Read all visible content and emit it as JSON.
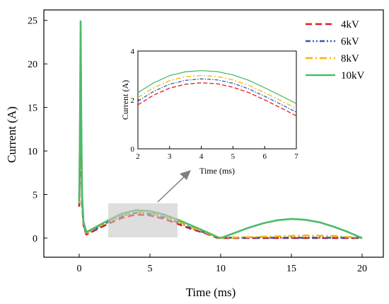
{
  "colors": {
    "s4": "#e41a1c",
    "s6": "#2b5fb3",
    "s8": "#f2b705",
    "s10": "#4dbb6a"
  },
  "chart_data": [
    {
      "type": "line",
      "xlabel": "Time (ms)",
      "ylabel": "Current (A)",
      "xlim": [
        -2.5,
        21.5
      ],
      "ylim": [
        -2.2,
        26.2
      ],
      "xticks": [
        0,
        5,
        10,
        15,
        20
      ],
      "yticks": [
        0,
        5,
        10,
        15,
        20,
        25
      ],
      "legend": "top-right",
      "series": [
        {
          "name": "4kV",
          "key": "s4",
          "dash": "9,5",
          "x": [
            0,
            0.05,
            0.1,
            0.15,
            0.2,
            0.3,
            0.5,
            1,
            2,
            3,
            4,
            5,
            6,
            7,
            8,
            9,
            9.8,
            10,
            12,
            14,
            16,
            18,
            20
          ],
          "y": [
            3.6,
            9,
            21,
            10,
            4,
            1.5,
            0.4,
            0.8,
            1.6,
            2.3,
            2.7,
            2.6,
            2.2,
            1.6,
            1.0,
            0.5,
            0.0,
            0.0,
            0.0,
            0.0,
            0.0,
            0.0,
            0.0
          ]
        },
        {
          "name": "6kV",
          "key": "s6",
          "dash": "7,3,2,3,2,3",
          "x": [
            0,
            0.05,
            0.1,
            0.15,
            0.2,
            0.3,
            0.5,
            1,
            2,
            3,
            4,
            5,
            6,
            7,
            8,
            9,
            9.8,
            10,
            12,
            14,
            16,
            18,
            20
          ],
          "y": [
            3.8,
            10,
            22,
            11,
            4.3,
            1.6,
            0.5,
            0.9,
            1.8,
            2.5,
            2.9,
            2.8,
            2.4,
            1.8,
            1.1,
            0.55,
            0.05,
            0.05,
            0.05,
            0.05,
            0.05,
            0.05,
            0.05
          ]
        },
        {
          "name": "8kV",
          "key": "s8",
          "dash": "10,4,2,4",
          "x": [
            0,
            0.05,
            0.1,
            0.15,
            0.2,
            0.3,
            0.5,
            1,
            2,
            3,
            4,
            5,
            6,
            7,
            8,
            9,
            9.8,
            10,
            12,
            14,
            15,
            16,
            18,
            20
          ],
          "y": [
            4.0,
            11,
            23.5,
            12,
            4.6,
            1.7,
            0.6,
            1.0,
            1.9,
            2.6,
            3.0,
            2.9,
            2.5,
            1.9,
            1.2,
            0.6,
            0.05,
            0.05,
            0.1,
            0.2,
            0.25,
            0.3,
            0.25,
            0.0
          ]
        },
        {
          "name": "10kV",
          "key": "s10",
          "dash": "",
          "x": [
            0,
            0.05,
            0.1,
            0.15,
            0.2,
            0.3,
            0.5,
            1,
            2,
            3,
            4,
            5,
            6,
            7,
            8,
            9,
            9.8,
            10,
            11,
            12,
            13,
            14,
            15,
            16,
            17,
            18,
            19,
            20
          ],
          "y": [
            4.2,
            12,
            24.9,
            13,
            5.0,
            1.9,
            0.7,
            1.1,
            2.0,
            2.8,
            3.2,
            3.1,
            2.7,
            2.1,
            1.4,
            0.7,
            0.1,
            0.0,
            0.6,
            1.2,
            1.7,
            2.05,
            2.2,
            2.1,
            1.8,
            1.3,
            0.7,
            0.0
          ]
        }
      ]
    },
    {
      "type": "line",
      "xlabel": "Time (ms)",
      "ylabel": "Current (A)",
      "xlim": [
        2,
        7
      ],
      "ylim": [
        0,
        4
      ],
      "xticks": [
        2,
        3,
        4,
        5,
        6,
        7
      ],
      "yticks": [
        0,
        2,
        4
      ],
      "series": [
        {
          "name": "4kV",
          "key": "s4",
          "dash": "6,3",
          "x": [
            2,
            2.5,
            3,
            3.5,
            4,
            4.5,
            5,
            5.5,
            6,
            6.5,
            7
          ],
          "y": [
            1.8,
            2.2,
            2.48,
            2.64,
            2.7,
            2.66,
            2.52,
            2.3,
            2.0,
            1.68,
            1.35
          ]
        },
        {
          "name": "6kV",
          "key": "s6",
          "dash": "5,2,1.5,2",
          "x": [
            2,
            2.5,
            3,
            3.5,
            4,
            4.5,
            5,
            5.5,
            6,
            6.5,
            7
          ],
          "y": [
            1.95,
            2.35,
            2.64,
            2.8,
            2.86,
            2.82,
            2.68,
            2.45,
            2.15,
            1.83,
            1.5
          ]
        },
        {
          "name": "8kV",
          "key": "s8",
          "dash": "7,3,2,3",
          "x": [
            2,
            2.5,
            3,
            3.5,
            4,
            4.5,
            5,
            5.5,
            6,
            6.5,
            7
          ],
          "y": [
            2.1,
            2.5,
            2.79,
            2.95,
            3.0,
            2.96,
            2.82,
            2.6,
            2.3,
            1.98,
            1.65
          ]
        },
        {
          "name": "10kV",
          "key": "s10",
          "dash": "",
          "x": [
            2,
            2.5,
            3,
            3.5,
            4,
            4.5,
            5,
            5.5,
            6,
            6.5,
            7
          ],
          "y": [
            2.3,
            2.7,
            2.99,
            3.15,
            3.2,
            3.16,
            3.02,
            2.8,
            2.5,
            2.18,
            1.85
          ]
        }
      ]
    }
  ]
}
